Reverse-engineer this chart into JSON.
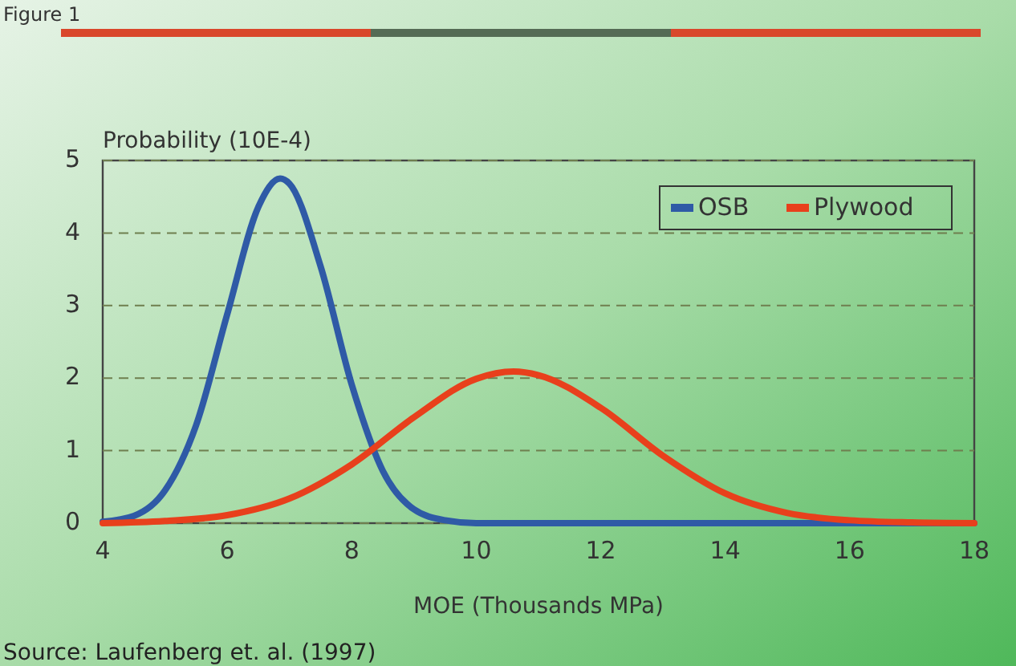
{
  "chart_data": {
    "type": "line",
    "title": "Figure 1",
    "xlabel": "MOE (Thousands MPa)",
    "ylabel": "Probability (10E-4)",
    "annotations": [
      "Source:  Laufenberg et. al. (1997)"
    ],
    "xlim": [
      4,
      18
    ],
    "xticks": [
      4,
      6,
      8,
      10,
      12,
      14,
      16,
      18
    ],
    "ylim": [
      0,
      5
    ],
    "yticks": [
      0,
      1,
      2,
      3,
      4,
      5
    ],
    "grid": "y",
    "legend": "top right",
    "marker": "none",
    "line_style": "solid",
    "series": [
      {
        "name": "OSB",
        "color": "#2f5aa6",
        "x": [
          4,
          4.5,
          5,
          5.5,
          6,
          6.5,
          6.85,
          7,
          7.5,
          8,
          8.5,
          9,
          9.5,
          10,
          18
        ],
        "values": [
          0.02,
          0.1,
          0.45,
          1.35,
          2.88,
          4.36,
          4.75,
          4.68,
          3.54,
          1.91,
          0.72,
          0.19,
          0.04,
          0,
          0
        ]
      },
      {
        "name": "Plywood",
        "color": "#e8401c",
        "x": [
          4,
          5,
          6,
          7,
          8,
          9,
          10,
          10.6,
          11,
          12,
          13,
          14,
          15,
          16,
          17,
          18
        ],
        "values": [
          0,
          0.03,
          0.11,
          0.34,
          0.81,
          1.46,
          1.99,
          2.09,
          2.04,
          1.59,
          0.93,
          0.41,
          0.14,
          0.04,
          0.01,
          0
        ]
      }
    ]
  }
}
